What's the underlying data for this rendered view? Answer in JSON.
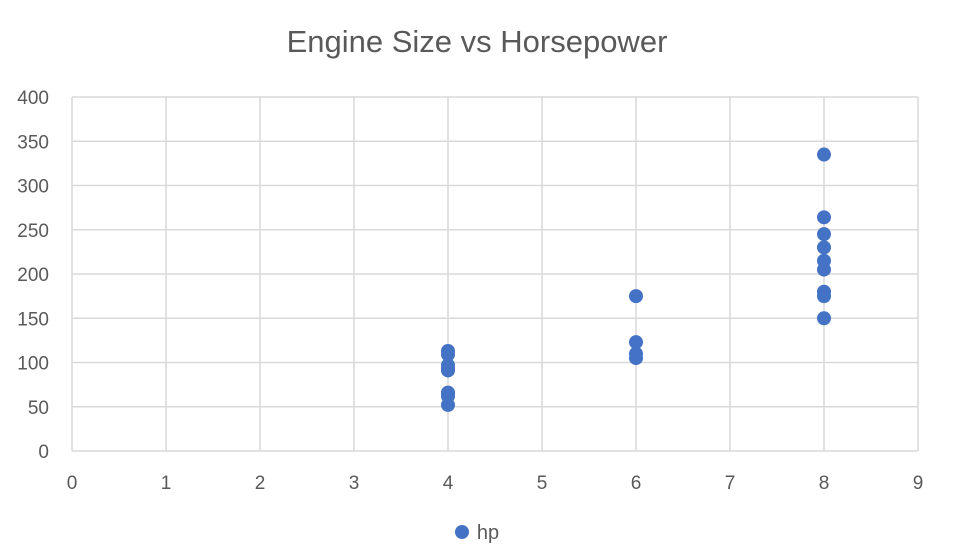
{
  "chart_data": {
    "type": "scatter",
    "title": "Engine Size vs Horsepower",
    "xlabel": "",
    "ylabel": "",
    "xlim": [
      0,
      9
    ],
    "ylim": [
      0,
      400
    ],
    "x_ticks": [
      0,
      1,
      2,
      3,
      4,
      5,
      6,
      7,
      8,
      9
    ],
    "y_ticks": [
      0,
      50,
      100,
      150,
      200,
      250,
      300,
      350,
      400
    ],
    "grid": true,
    "legend_position": "bottom",
    "colors": {
      "series": "#4472C4",
      "grid": "#D9D9D9",
      "text": "#595959"
    },
    "series": [
      {
        "name": "hp",
        "points": [
          {
            "x": 4,
            "y": 113
          },
          {
            "x": 4,
            "y": 109
          },
          {
            "x": 4,
            "y": 97
          },
          {
            "x": 4,
            "y": 93
          },
          {
            "x": 4,
            "y": 91
          },
          {
            "x": 4,
            "y": 66
          },
          {
            "x": 4,
            "y": 65
          },
          {
            "x": 4,
            "y": 62
          },
          {
            "x": 4,
            "y": 52
          },
          {
            "x": 6,
            "y": 175
          },
          {
            "x": 6,
            "y": 123
          },
          {
            "x": 6,
            "y": 110
          },
          {
            "x": 6,
            "y": 105
          },
          {
            "x": 8,
            "y": 335
          },
          {
            "x": 8,
            "y": 264
          },
          {
            "x": 8,
            "y": 245
          },
          {
            "x": 8,
            "y": 230
          },
          {
            "x": 8,
            "y": 215
          },
          {
            "x": 8,
            "y": 205
          },
          {
            "x": 8,
            "y": 180
          },
          {
            "x": 8,
            "y": 175
          },
          {
            "x": 8,
            "y": 150
          }
        ]
      }
    ]
  }
}
